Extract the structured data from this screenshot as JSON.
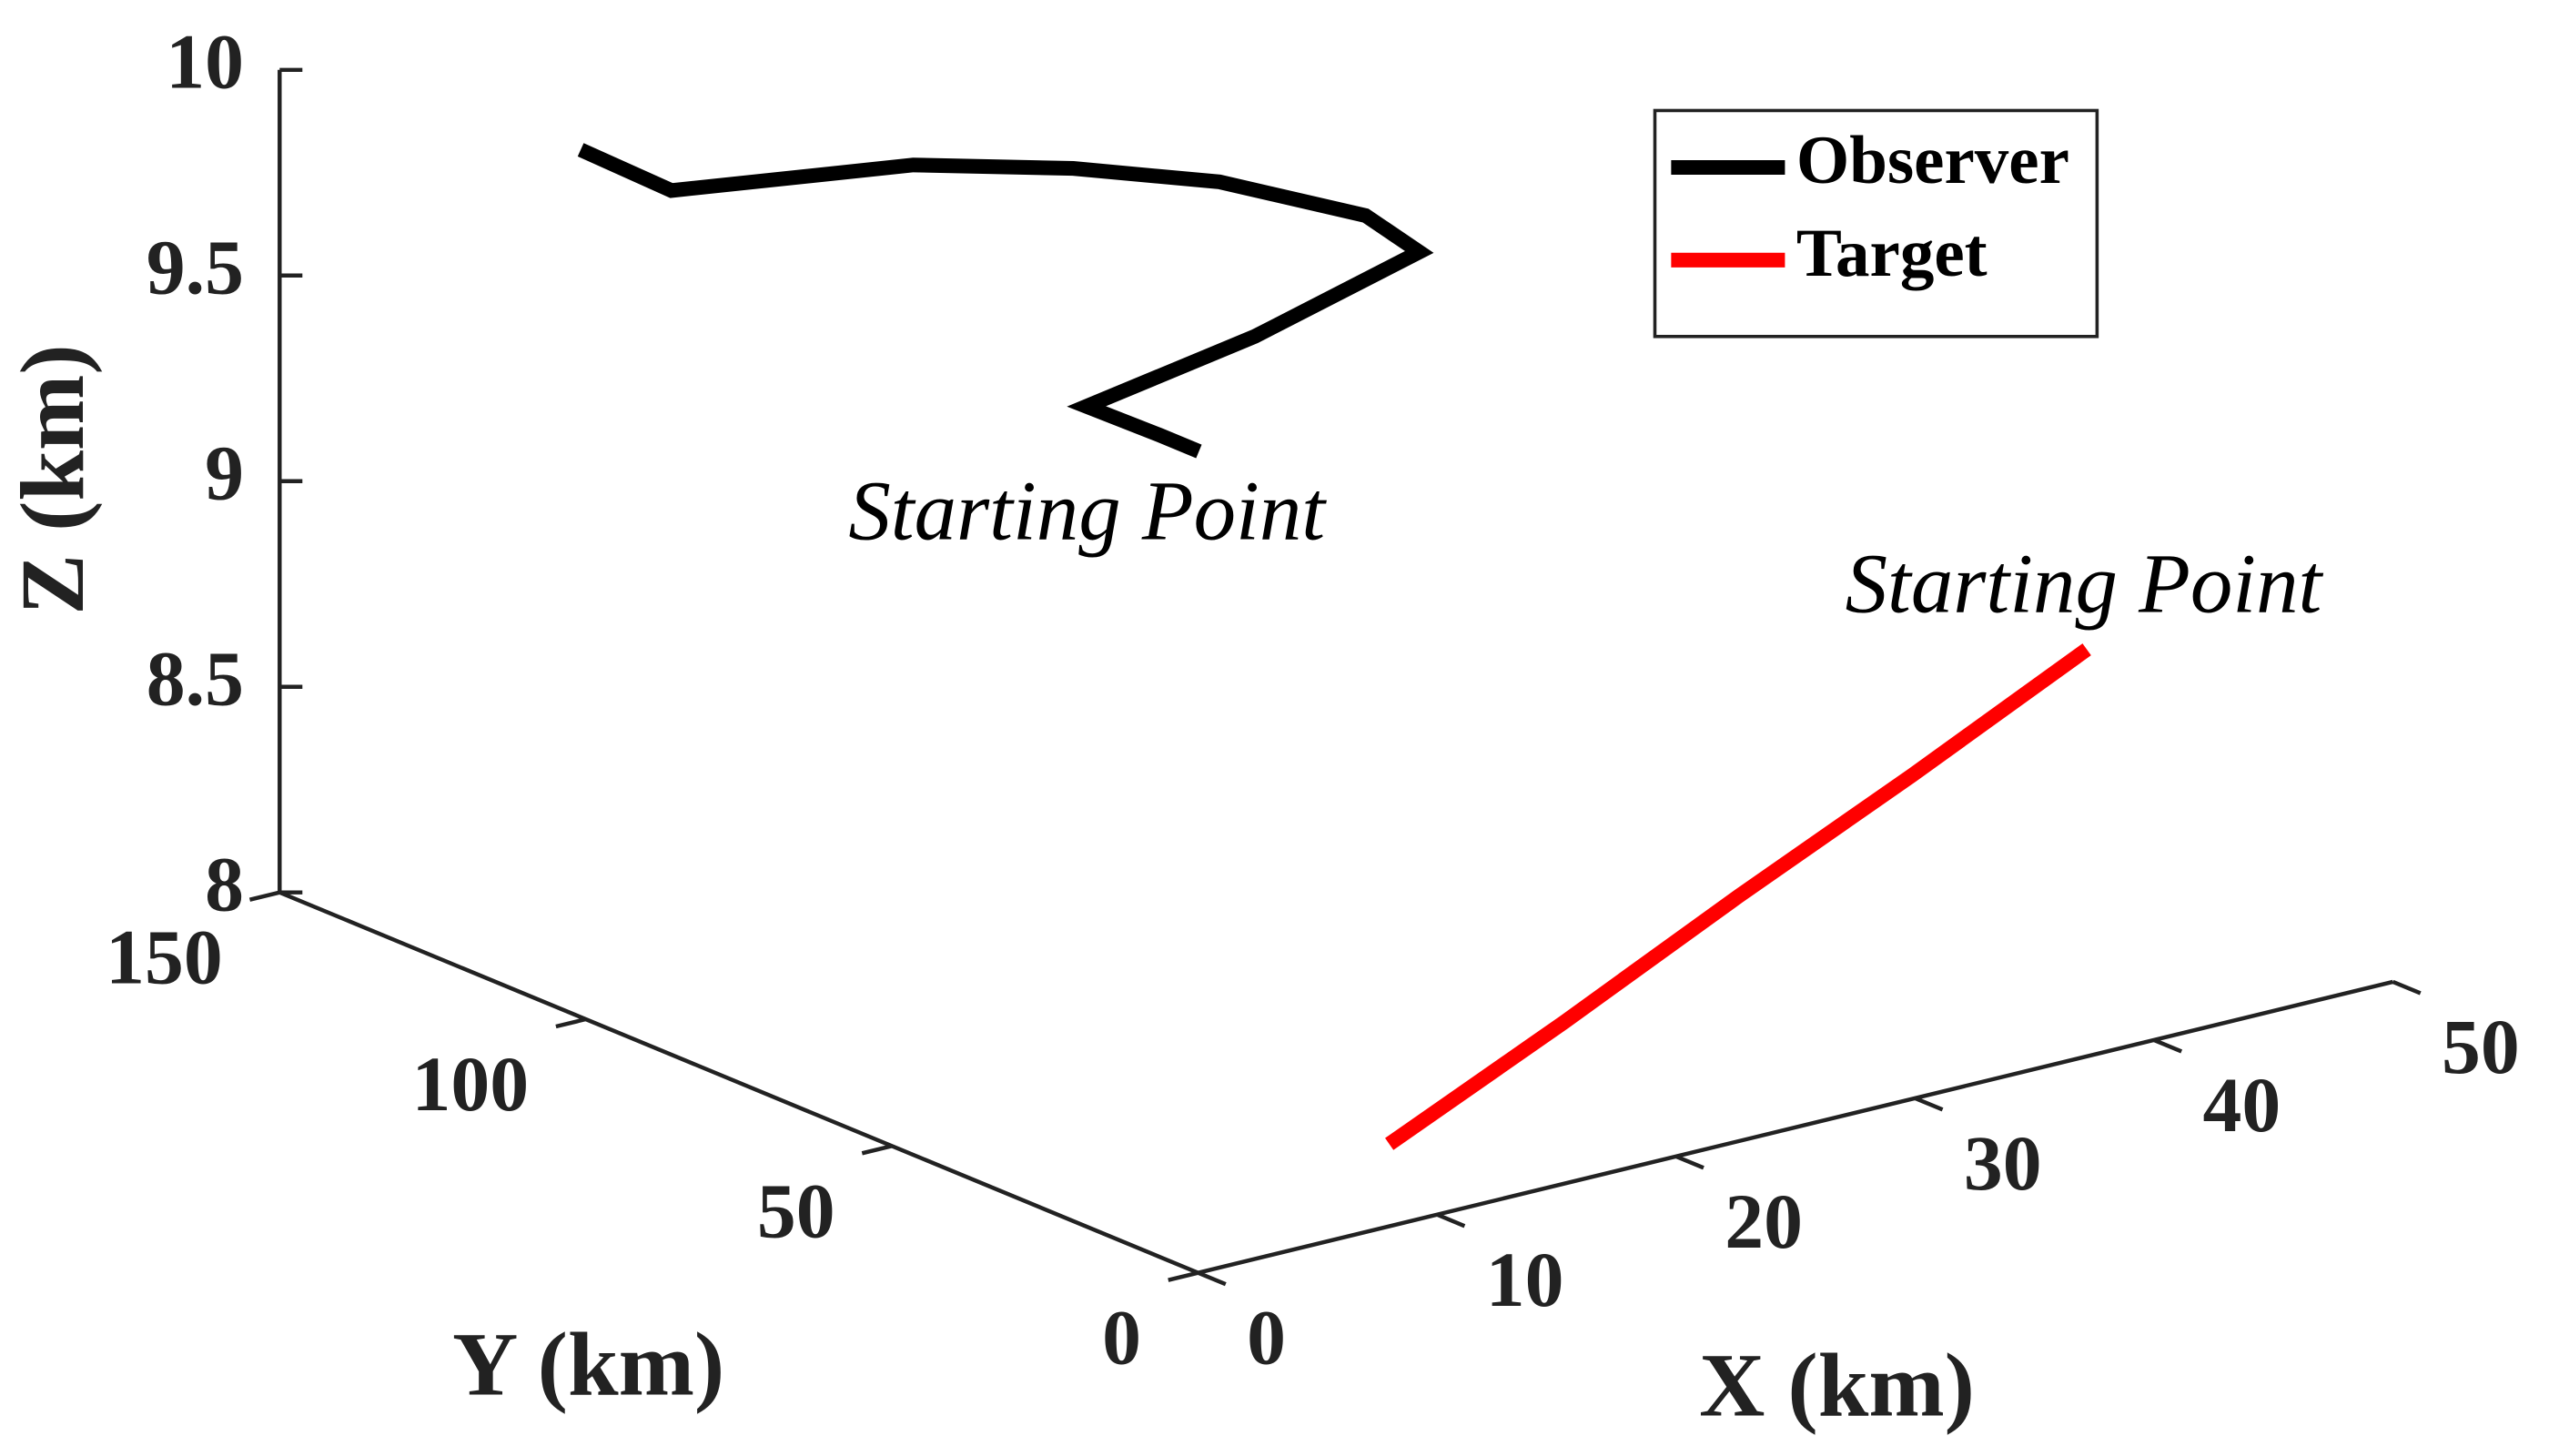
{
  "chart_data": {
    "type": "line3d",
    "xlabel": "X (km)",
    "ylabel": "Y (km)",
    "zlabel": "Z (km)",
    "xlim": [
      0,
      50
    ],
    "ylim": [
      0,
      150
    ],
    "zlim": [
      8,
      10
    ],
    "xticks": [
      0,
      10,
      20,
      30,
      40,
      50
    ],
    "yticks": [
      0,
      50,
      100,
      150
    ],
    "zticks": [
      8,
      8.5,
      9,
      9.5,
      10
    ],
    "legend": "upper right",
    "series": [
      {
        "name": "Observer",
        "color": "#000000",
        "annotation": "Starting Point",
        "x": [
          7.8,
          7.8,
          7.7,
          16.6,
          26.3,
          27.2,
          25.5,
          22.5,
          18.5,
          10.5,
          10.7
        ],
        "y": [
          30.3,
          36.7,
          48.3,
          55.5,
          66.5,
          78.8,
          96.0,
          108.2,
          118.7,
          127.0,
          142.6
        ],
        "z": [
          9.7,
          9.7,
          9.7,
          9.7,
          9.7,
          9.7,
          9.7,
          9.7,
          9.7,
          9.7,
          9.7
        ]
      },
      {
        "name": "Target",
        "color": "#ff0000",
        "annotation": "Starting Point",
        "x": [
          50,
          39.5,
          29,
          18.5,
          8
        ],
        "y": [
          50,
          37.5,
          25,
          12.5,
          0
        ],
        "z": [
          8.5,
          8.42,
          8.35,
          8.27,
          8.2
        ]
      }
    ]
  }
}
